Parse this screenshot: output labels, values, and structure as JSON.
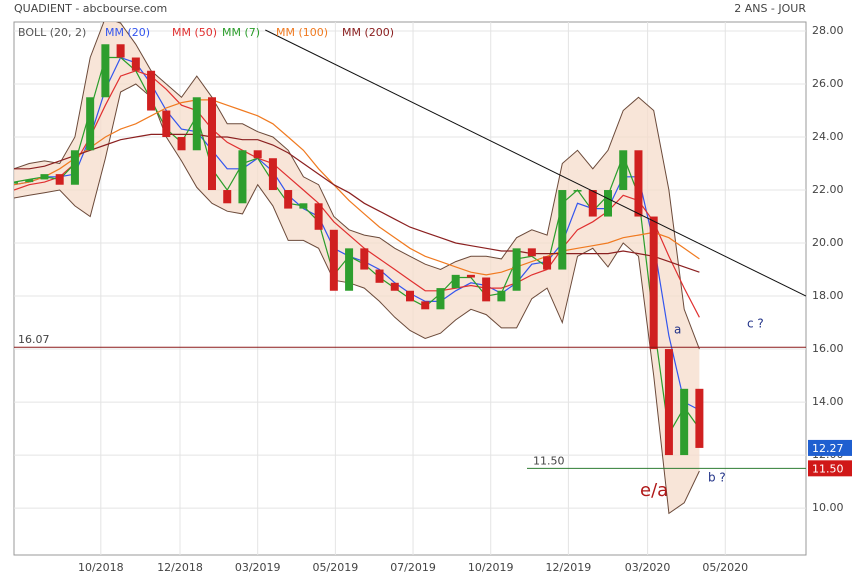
{
  "chart_data": {
    "type": "candlestick",
    "title": "QUADIENT - abcbourse.com",
    "subtitle": "2 ANS - JOUR",
    "grid": true,
    "x": [
      0,
      1,
      2,
      3,
      4,
      5,
      6,
      7,
      8,
      9,
      10,
      11,
      12,
      13,
      14,
      15,
      16,
      17,
      18,
      19,
      20,
      21,
      22,
      23,
      24,
      25,
      26,
      27,
      28,
      29,
      30,
      31,
      32,
      33,
      34,
      35,
      36,
      37,
      38,
      39,
      40,
      41,
      42,
      43,
      44,
      45
    ],
    "xlim": [
      0,
      52
    ],
    "xticks": [
      {
        "value": 5.7,
        "label": "10/2018"
      },
      {
        "value": 10.9,
        "label": "12/2018"
      },
      {
        "value": 16.0,
        "label": "03/2019"
      },
      {
        "value": 21.1,
        "label": "05/2019"
      },
      {
        "value": 26.2,
        "label": "07/2019"
      },
      {
        "value": 31.3,
        "label": "10/2019"
      },
      {
        "value": 36.4,
        "label": "12/2019"
      },
      {
        "value": 41.6,
        "label": "03/2020"
      },
      {
        "value": 46.7,
        "label": "05/2020"
      }
    ],
    "ylim": [
      8.23,
      28.34
    ],
    "yticks": [
      {
        "value": 10,
        "label": "10.00"
      },
      {
        "value": 12,
        "label": "12.00"
      },
      {
        "value": 14,
        "label": "14.00"
      },
      {
        "value": 16,
        "label": "16.00"
      },
      {
        "value": 18,
        "label": "18.00"
      },
      {
        "value": 20,
        "label": "20.00"
      },
      {
        "value": 22,
        "label": "22.00"
      },
      {
        "value": 24,
        "label": "24.00"
      },
      {
        "value": 26,
        "label": "26.00"
      },
      {
        "value": 28,
        "label": "28.00"
      }
    ],
    "price": {
      "up_color": "#2e9e2e",
      "down_color": "#d02020",
      "values": [
        22.3,
        22.4,
        22.6,
        22.2,
        23.5,
        25.5,
        27.5,
        27.0,
        26.5,
        25.0,
        24.0,
        23.5,
        25.5,
        22.0,
        21.5,
        23.5,
        23.2,
        22.0,
        21.3,
        21.5,
        20.5,
        18.2,
        19.8,
        19.0,
        18.5,
        18.2,
        17.8,
        17.5,
        18.3,
        18.8,
        18.7,
        17.8,
        18.2,
        19.8,
        19.5,
        19.0,
        22.0,
        22.0,
        21.0,
        22.0,
        23.5,
        21.0,
        16.0,
        12.0,
        14.5,
        12.27
      ]
    },
    "bollinger": {
      "name": "BOLL (20, 2)",
      "color": "#6b4a3a",
      "fill": "#f6dccb",
      "upper": [
        22.8,
        23.0,
        23.1,
        23.0,
        24.0,
        27.0,
        28.5,
        28.3,
        27.5,
        26.5,
        26.0,
        25.5,
        26.3,
        25.5,
        24.5,
        24.5,
        24.2,
        24.0,
        23.5,
        22.5,
        22.2,
        21.0,
        20.5,
        20.3,
        20.2,
        19.8,
        19.5,
        19.2,
        19.0,
        19.3,
        19.5,
        19.5,
        19.4,
        20.2,
        20.5,
        20.3,
        23.0,
        23.5,
        22.8,
        23.5,
        25.0,
        25.5,
        25.0,
        22.0,
        17.5,
        16.0
      ],
      "lower": [
        21.7,
        21.8,
        21.9,
        22.0,
        21.4,
        21.0,
        23.2,
        25.7,
        26.0,
        25.5,
        24.0,
        23.1,
        22.1,
        21.5,
        21.2,
        21.1,
        22.2,
        21.4,
        20.1,
        20.1,
        19.8,
        18.6,
        18.5,
        18.3,
        17.8,
        17.2,
        16.7,
        16.4,
        16.6,
        17.1,
        17.5,
        17.3,
        16.8,
        16.8,
        17.9,
        18.3,
        17.0,
        19.5,
        19.8,
        19.1,
        20.0,
        19.5,
        15.0,
        9.8,
        10.2,
        11.4
      ]
    },
    "series": [
      {
        "name": "MM (20)",
        "color": "#3355ee",
        "values": [
          22.2,
          22.3,
          22.5,
          22.5,
          22.6,
          24.0,
          25.8,
          27.0,
          26.8,
          26.0,
          25.0,
          24.3,
          24.2,
          23.5,
          22.8,
          22.8,
          23.2,
          22.7,
          21.8,
          21.3,
          21.0,
          19.8,
          19.5,
          19.3,
          19.0,
          18.5,
          18.1,
          17.8,
          17.8,
          18.2,
          18.5,
          18.4,
          18.1,
          18.5,
          19.2,
          19.3,
          20.0,
          21.5,
          21.3,
          21.3,
          22.5,
          22.5,
          20.0,
          16.5,
          14.0,
          13.7
        ]
      },
      {
        "name": "MM (50)",
        "color": "#e03030",
        "values": [
          22.0,
          22.2,
          22.3,
          22.5,
          23.0,
          24.0,
          25.2,
          26.3,
          26.5,
          26.3,
          25.8,
          25.2,
          25.0,
          24.3,
          23.8,
          23.5,
          23.2,
          23.0,
          22.5,
          22.0,
          21.5,
          20.8,
          20.3,
          19.8,
          19.4,
          19.0,
          18.6,
          18.2,
          18.2,
          18.3,
          18.4,
          18.3,
          18.3,
          18.5,
          18.8,
          19.0,
          19.8,
          20.5,
          20.8,
          21.2,
          21.8,
          21.6,
          20.8,
          19.5,
          18.3,
          17.2
        ]
      },
      {
        "name": "MM (7)",
        "color": "#2a9d2a",
        "values": [
          22.3,
          22.4,
          22.5,
          22.4,
          23.0,
          25.0,
          27.0,
          27.0,
          26.5,
          25.4,
          24.3,
          23.8,
          24.8,
          22.8,
          22.0,
          23.0,
          23.2,
          22.3,
          21.5,
          21.4,
          20.8,
          18.8,
          19.5,
          19.2,
          18.7,
          18.3,
          17.9,
          17.6,
          18.1,
          18.7,
          18.7,
          18.0,
          18.1,
          19.4,
          19.5,
          19.1,
          21.5,
          22.0,
          21.2,
          21.8,
          23.3,
          21.8,
          17.0,
          12.8,
          13.8,
          13.0
        ]
      },
      {
        "name": "MM (100)",
        "color": "#f07a20",
        "values": [
          22.2,
          22.3,
          22.5,
          22.8,
          23.2,
          23.6,
          24.0,
          24.3,
          24.5,
          24.8,
          25.1,
          25.3,
          25.4,
          25.4,
          25.2,
          25.0,
          24.8,
          24.5,
          24.0,
          23.5,
          22.8,
          22.2,
          21.6,
          21.1,
          20.6,
          20.2,
          19.8,
          19.5,
          19.3,
          19.1,
          18.9,
          18.8,
          18.9,
          19.1,
          19.3,
          19.5,
          19.7,
          19.8,
          19.9,
          20.0,
          20.2,
          20.3,
          20.4,
          20.2,
          19.8,
          19.4
        ]
      },
      {
        "name": "MM (200)",
        "color": "#8b2020",
        "values": [
          22.8,
          22.8,
          22.9,
          23.1,
          23.3,
          23.5,
          23.7,
          23.9,
          24.0,
          24.1,
          24.1,
          24.1,
          24.1,
          24.0,
          24.0,
          23.9,
          23.9,
          23.7,
          23.4,
          23.0,
          22.6,
          22.2,
          21.9,
          21.5,
          21.2,
          20.9,
          20.6,
          20.4,
          20.2,
          20.0,
          19.9,
          19.8,
          19.7,
          19.7,
          19.6,
          19.6,
          19.6,
          19.6,
          19.6,
          19.6,
          19.7,
          19.6,
          19.5,
          19.3,
          19.1,
          18.9
        ]
      }
    ],
    "trendline": {
      "color": "#111111",
      "x": [
        16.5,
        52
      ],
      "values": [
        28.04,
        18.0
      ]
    },
    "levels": [
      {
        "value": 16.07,
        "color": "#8b1a1a"
      },
      {
        "value": 11.5,
        "label": "11.50",
        "color": "#2e7d32"
      }
    ],
    "last_price": {
      "value": 12.27,
      "color": "#1f5fd0"
    },
    "annotations": [
      {
        "text": "a"
      },
      {
        "text": "c ?"
      },
      {
        "text": "b ?"
      },
      {
        "text": "e/a"
      }
    ]
  }
}
